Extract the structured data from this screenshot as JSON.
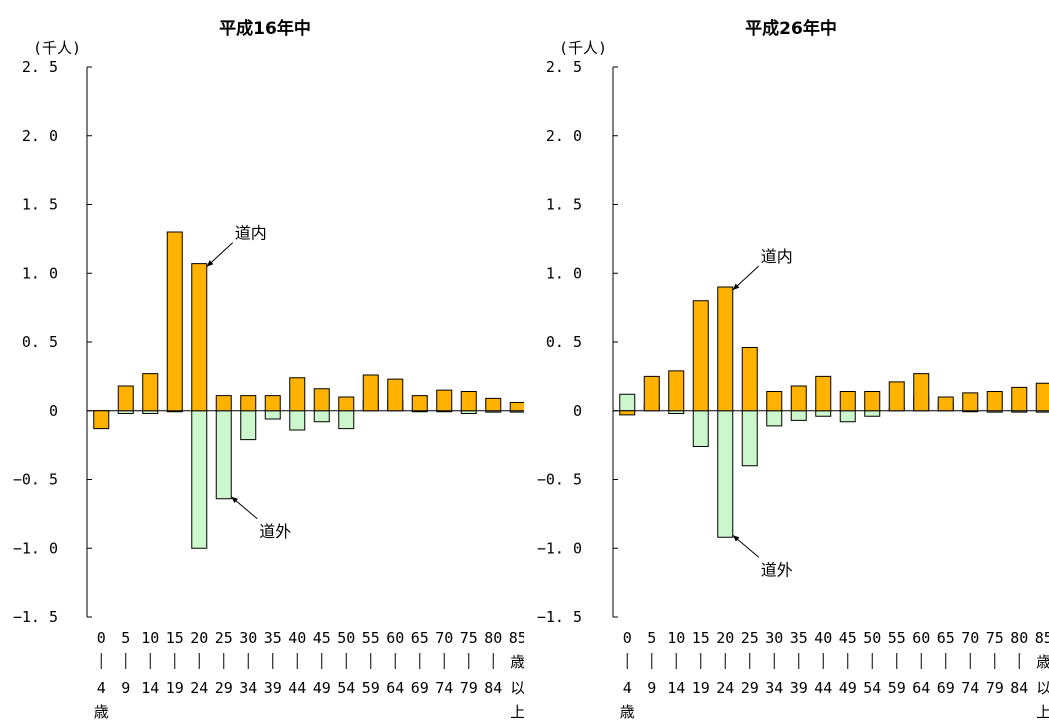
{
  "unit_label": "(千人)",
  "category_tops": [
    "0",
    "5",
    "10",
    "15",
    "20",
    "25",
    "30",
    "35",
    "40",
    "45",
    "50",
    "55",
    "60",
    "65",
    "70",
    "75",
    "80",
    "85"
  ],
  "category_bottoms": [
    "4",
    "9",
    "14",
    "19",
    "24",
    "29",
    "34",
    "39",
    "44",
    "49",
    "54",
    "59",
    "64",
    "69",
    "74",
    "79",
    "84",
    ""
  ],
  "category_suffixes": [
    "歳",
    "歳",
    "以",
    "上"
  ],
  "chart_data": [
    {
      "type": "bar",
      "title": "平成16年中",
      "ylabel": "(千人)",
      "ylim": [
        -1.5,
        2.5
      ],
      "yticks": [
        "2.5",
        "2.0",
        "1.5",
        "1.0",
        "0.5",
        "0",
        "-0.5",
        "-1.0",
        "-1.5"
      ],
      "categories": [
        "0-4歳",
        "5-9",
        "10-14",
        "15-19",
        "20-24",
        "25-29",
        "30-34",
        "35-39",
        "40-44",
        "45-49",
        "50-54",
        "55-59",
        "60-64",
        "65-69",
        "70-74",
        "75-79",
        "80-84",
        "85歳以上"
      ],
      "series": [
        {
          "name": "道内",
          "values": [
            -0.13,
            0.18,
            0.27,
            1.3,
            1.07,
            0.11,
            0.11,
            0.11,
            0.24,
            0.16,
            0.1,
            0.26,
            0.23,
            0.11,
            0.15,
            0.14,
            0.09,
            0.06
          ]
        },
        {
          "name": "道外",
          "values": [
            -0.01,
            -0.02,
            -0.02,
            0.0,
            -1.0,
            -0.64,
            -0.21,
            -0.06,
            -0.14,
            -0.08,
            -0.13,
            0.08,
            0.08,
            0.0,
            0.0,
            -0.02,
            -0.01,
            -0.01
          ]
        }
      ],
      "annotations": [
        {
          "text": "道内",
          "series": "道内",
          "category": "20-24"
        },
        {
          "text": "道外",
          "series": "道外",
          "category": "25-29"
        }
      ]
    },
    {
      "type": "bar",
      "title": "平成26年中",
      "ylabel": "(千人)",
      "ylim": [
        -1.5,
        2.5
      ],
      "yticks": [
        "2.5",
        "2.0",
        "1.5",
        "1.0",
        "0.5",
        "0",
        "-0.5",
        "-1.0",
        "-1.5"
      ],
      "categories": [
        "0-4歳",
        "5-9",
        "10-14",
        "15-19",
        "20-24",
        "25-29",
        "30-34",
        "35-39",
        "40-44",
        "45-49",
        "50-54",
        "55-59",
        "60-64",
        "65-69",
        "70-74",
        "75-79",
        "80-84",
        "85歳以上"
      ],
      "series": [
        {
          "name": "道内",
          "values": [
            -0.03,
            0.25,
            0.29,
            0.8,
            0.9,
            0.46,
            0.14,
            0.18,
            0.25,
            0.14,
            0.14,
            0.21,
            0.27,
            0.1,
            0.13,
            0.14,
            0.17,
            0.2
          ]
        },
        {
          "name": "道外",
          "values": [
            0.12,
            0.04,
            -0.02,
            -0.26,
            -0.92,
            -0.4,
            -0.11,
            -0.07,
            -0.04,
            -0.08,
            -0.04,
            0.02,
            0.11,
            0.06,
            0.0,
            -0.01,
            -0.01,
            -0.01
          ]
        }
      ],
      "annotations": [
        {
          "text": "道内",
          "series": "道内",
          "category": "20-24"
        },
        {
          "text": "道外",
          "series": "道外",
          "category": "20-24"
        }
      ]
    }
  ]
}
